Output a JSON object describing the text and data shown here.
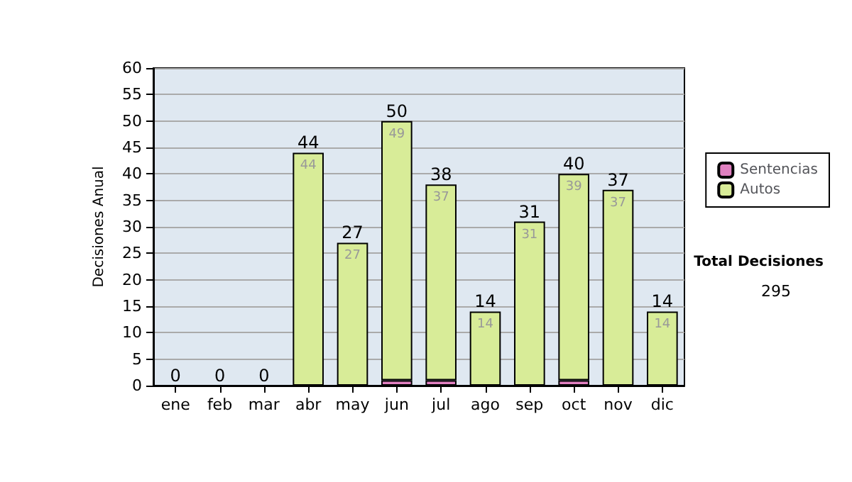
{
  "chart_data": {
    "type": "bar",
    "stacked": true,
    "ylabel": "Decisiones Anual",
    "categories": [
      "ene",
      "feb",
      "mar",
      "abr",
      "may",
      "jun",
      "jul",
      "ago",
      "sep",
      "oct",
      "nov",
      "dic"
    ],
    "series": [
      {
        "name": "Sentencias",
        "color": "#e080c0",
        "values": [
          0,
          0,
          0,
          0,
          0,
          1,
          1,
          0,
          0,
          1,
          0,
          0
        ]
      },
      {
        "name": "Autos",
        "color": "#d8ec98",
        "values": [
          0,
          0,
          0,
          44,
          27,
          49,
          37,
          14,
          31,
          39,
          37,
          14
        ],
        "value_labels": [
          null,
          null,
          null,
          "44",
          "27",
          "49",
          "37",
          "14",
          "31",
          "39",
          "37",
          "14"
        ]
      }
    ],
    "totals": [
      "0",
      "0",
      "0",
      "44",
      "27",
      "50",
      "38",
      "14",
      "31",
      "40",
      "37",
      "14"
    ],
    "ylim": [
      0,
      60
    ],
    "yticks": [
      0,
      5,
      10,
      15,
      20,
      25,
      30,
      35,
      40,
      45,
      50,
      55,
      60
    ],
    "grid": "y",
    "legend": "right",
    "annotations": [
      "Total Decisiones",
      "295"
    ]
  }
}
